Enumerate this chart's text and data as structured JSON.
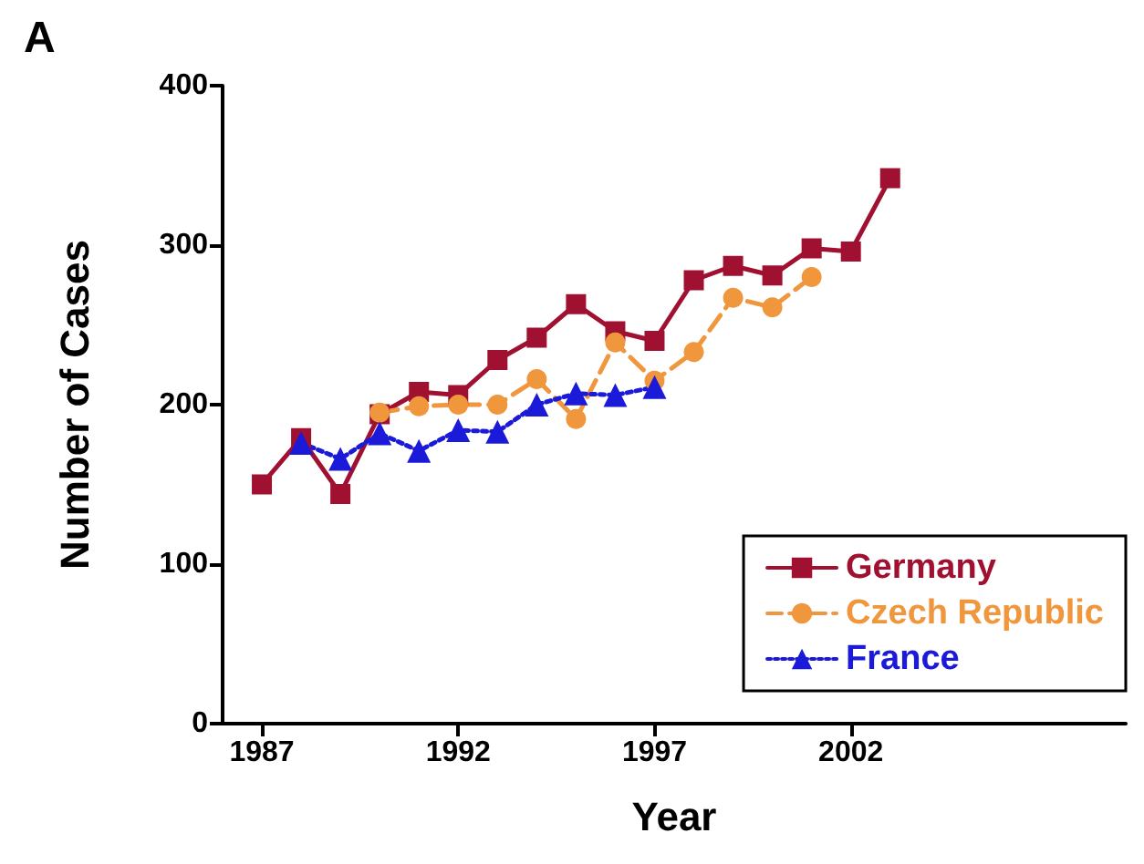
{
  "chart_data": {
    "type": "line",
    "title": "A",
    "xlabel": "Year",
    "ylabel": "Number of Cases",
    "xlim": [
      1986,
      2009
    ],
    "xticks": [
      1987,
      1992,
      1997,
      2002
    ],
    "ylim": [
      0,
      400
    ],
    "yticks": [
      0,
      100,
      200,
      300,
      400
    ],
    "grid": false,
    "legend": "bottom right",
    "series": [
      {
        "name": "Germany",
        "color": "#a01030",
        "marker": "square",
        "line_style": "solid",
        "x": [
          1987,
          1988,
          1989,
          1990,
          1991,
          1992,
          1993,
          1994,
          1995,
          1996,
          1997,
          1998,
          1999,
          2000,
          2001,
          2002,
          2003
        ],
        "values": [
          150,
          179,
          144,
          194,
          208,
          206,
          228,
          242,
          263,
          246,
          240,
          278,
          287,
          281,
          298,
          296,
          342
        ]
      },
      {
        "name": "Czech Republic",
        "color": "#f0963c",
        "marker": "circle",
        "line_style": "dashed",
        "x": [
          1990,
          1991,
          1992,
          1993,
          1994,
          1995,
          1996,
          1997,
          1998,
          1999,
          2000,
          2001
        ],
        "values": [
          195,
          199,
          200,
          200,
          216,
          191,
          239,
          215,
          233,
          267,
          261,
          280
        ]
      },
      {
        "name": "France",
        "color": "#1a1ad8",
        "marker": "triangle",
        "line_style": "dotted",
        "x": [
          1988,
          1989,
          1990,
          1991,
          1992,
          1993,
          1994,
          1995,
          1996,
          1997
        ],
        "values": [
          176,
          166,
          182,
          171,
          184,
          183,
          200,
          207,
          206,
          211
        ]
      }
    ]
  }
}
